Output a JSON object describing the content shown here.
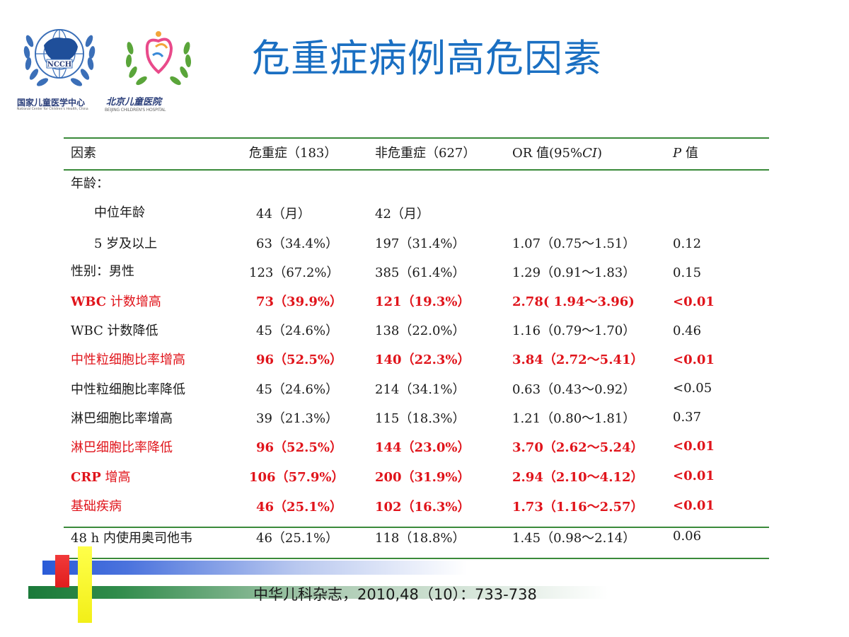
{
  "logos": {
    "ncch_emblem_text": "NCCH",
    "ncch_name_cn": "国家儿童医学中心",
    "ncch_name_en": "National Center for Children's Health, China",
    "bch_name_cn": "北京儿童医院",
    "bch_name_en": "BEIJING CHILDREN'S HOSPITAL"
  },
  "title": "危重症病例高危因素",
  "table": {
    "headers": {
      "factor": "因素",
      "critical": "危重症（183）",
      "non_critical": "非危重症（627）",
      "or_prefix": "OR 值(95%",
      "or_ci": "CI",
      "or_suffix": ")",
      "p_italic": "P",
      "p_suffix": " 值"
    },
    "rows": [
      {
        "factor": "年龄：",
        "critical": "",
        "non_critical": "",
        "or": "",
        "p": "",
        "highlight": false,
        "indent": false
      },
      {
        "factor": "中位年龄",
        "critical": "44（月）",
        "non_critical": "42（月）",
        "or": "",
        "p": "",
        "highlight": false,
        "indent": true
      },
      {
        "factor": "5 岁及以上",
        "critical": "63（34.4%）",
        "non_critical": "197（31.4%）",
        "or": "1.07（0.75～1.51）",
        "p": "0.12",
        "highlight": false,
        "indent": true
      },
      {
        "factor": "性别：男性",
        "critical": "123（67.2%）",
        "non_critical": "385（61.4%）",
        "or": "1.29（0.91～1.83）",
        "p": "0.15",
        "highlight": false,
        "indent": false
      },
      {
        "factor_bold": "WBC",
        "factor": " 计数增高",
        "critical": "73（39.9%）",
        "non_critical": "121（19.3%）",
        "or": "2.78( 1.94～3.96)",
        "p": "<0.01",
        "highlight": true,
        "indent": false
      },
      {
        "factor": "WBC 计数降低",
        "critical": "45（24.6%）",
        "non_critical": "138（22.0%）",
        "or": "1.16（0.79～1.70）",
        "p": "0.46",
        "highlight": false,
        "indent": false
      },
      {
        "factor": "中性粒细胞比率增高",
        "critical": "96（52.5%）",
        "non_critical": "140（22.3%）",
        "or": "3.84（2.72～5.41）",
        "p": "<0.01",
        "highlight": true,
        "indent": false
      },
      {
        "factor": "中性粒细胞比率降低",
        "critical": "45（24.6%）",
        "non_critical": "214（34.1%）",
        "or": "0.63（0.43～0.92）",
        "p": "<0.05",
        "highlight": false,
        "indent": false
      },
      {
        "factor": "淋巴细胞比率增高",
        "critical": "39（21.3%）",
        "non_critical": "115（18.3%）",
        "or": "1.21（0.80～1.81）",
        "p": "0.37",
        "highlight": false,
        "indent": false
      },
      {
        "factor": "淋巴细胞比率降低",
        "critical": "96（52.5%）",
        "non_critical": "144（23.0%）",
        "or": "3.70（2.62～5.24）",
        "p": "<0.01",
        "highlight": true,
        "indent": false
      },
      {
        "factor_bold": "CRP",
        "factor": " 增高",
        "critical": "106（57.9%）",
        "non_critical": "200（31.9%）",
        "or": "2.94（2.10～4.12）",
        "p": "<0.01",
        "highlight": true,
        "indent": false
      },
      {
        "factor": "基础疾病",
        "critical": "46（25.1%）",
        "non_critical": "102（16.3%）",
        "or": "1.73（1.16～2.57）",
        "p": "<0.01",
        "highlight": true,
        "indent": false
      },
      {
        "factor": "48 h 内使用奥司他韦",
        "critical": "46（25.1%）",
        "non_critical": "118（18.8%）",
        "or": "1.45（0.98～2.14）",
        "p": "0.06",
        "highlight": false,
        "indent": false
      }
    ]
  },
  "citation": "中华儿科杂志，2010,48（10）：733-738",
  "colors": {
    "title": "#1a6fc2",
    "highlight": "#e0141b",
    "rule": "#3a8a3a"
  }
}
